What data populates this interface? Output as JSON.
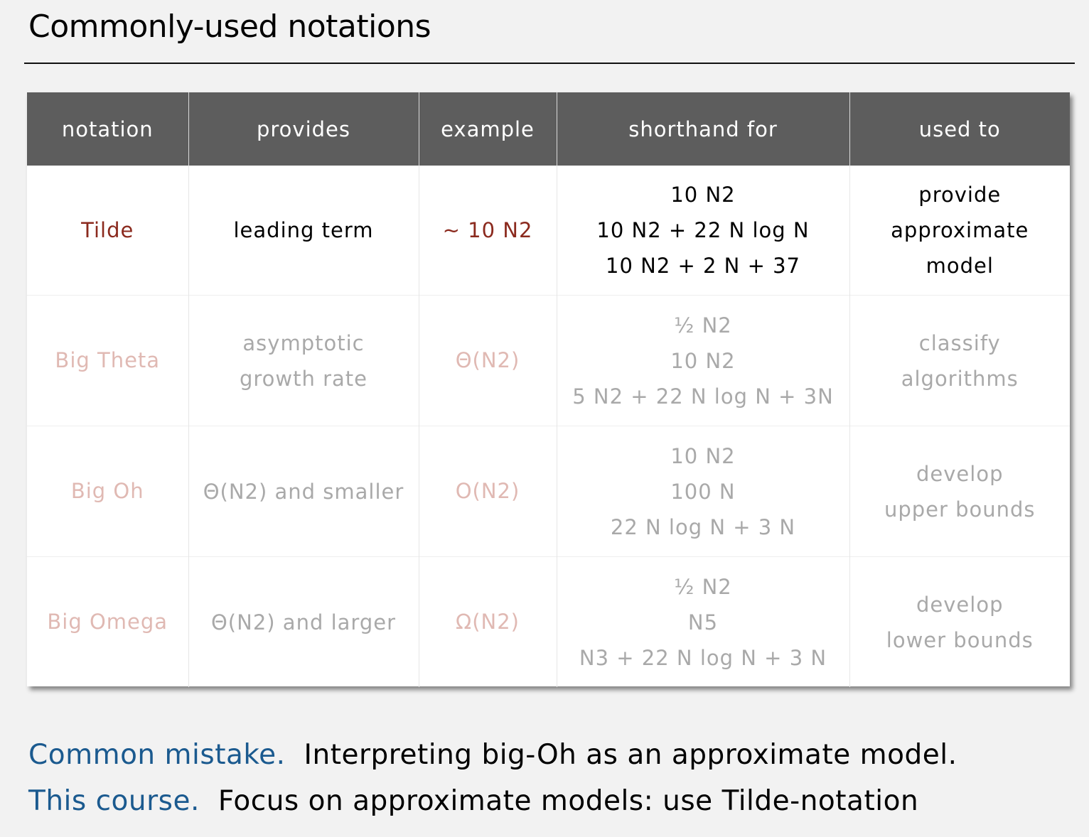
{
  "page": {
    "title": "Commonly-used notations"
  },
  "table": {
    "headers": [
      "notation",
      "provides",
      "example",
      "shorthand for",
      "used to"
    ],
    "rows": [
      {
        "notation": "Tilde",
        "provides": [
          "leading term"
        ],
        "example": "~ 10 N2",
        "shorthand": [
          "10 N2",
          "10 N2 + 22 N log N",
          "10 N2 + 2 N + 37"
        ],
        "used_to": [
          "provide",
          "approximate",
          "model"
        ],
        "state": "highlighted"
      },
      {
        "notation": "Big Theta",
        "provides": [
          "asymptotic",
          "growth rate"
        ],
        "example": "Θ(N2)",
        "shorthand": [
          "½ N2",
          "10 N2",
          "5 N2 + 22 N log N + 3N"
        ],
        "used_to": [
          "classify",
          "algorithms"
        ],
        "state": "faded"
      },
      {
        "notation": "Big Oh",
        "provides": [
          "Θ(N2) and smaller"
        ],
        "example": "O(N2)",
        "shorthand": [
          "10 N2",
          "100 N",
          "22 N log N + 3 N"
        ],
        "used_to": [
          "develop",
          "upper bounds"
        ],
        "state": "faded"
      },
      {
        "notation": "Big Omega",
        "provides": [
          "Θ(N2) and larger"
        ],
        "example": "Ω(N2)",
        "shorthand": [
          "½ N2",
          "N5",
          "N3 + 22 N log N + 3 N"
        ],
        "used_to": [
          "develop",
          "lower bounds"
        ],
        "state": "faded"
      }
    ]
  },
  "footer": {
    "line1_lead": "Common mistake.",
    "line1_text": "Interpreting big-Oh as an approximate model.",
    "line2_lead": "This course.",
    "line2_text": "Focus on approximate models: use Tilde-notation"
  },
  "colors": {
    "background": "#f2f2f2",
    "header_bg": "#5d5d5d",
    "active_red": "#8b2a1e",
    "faded_red": "#e0b9b3",
    "faded_gray": "#a9a9a9",
    "footer_blue": "#1b5a8f"
  }
}
